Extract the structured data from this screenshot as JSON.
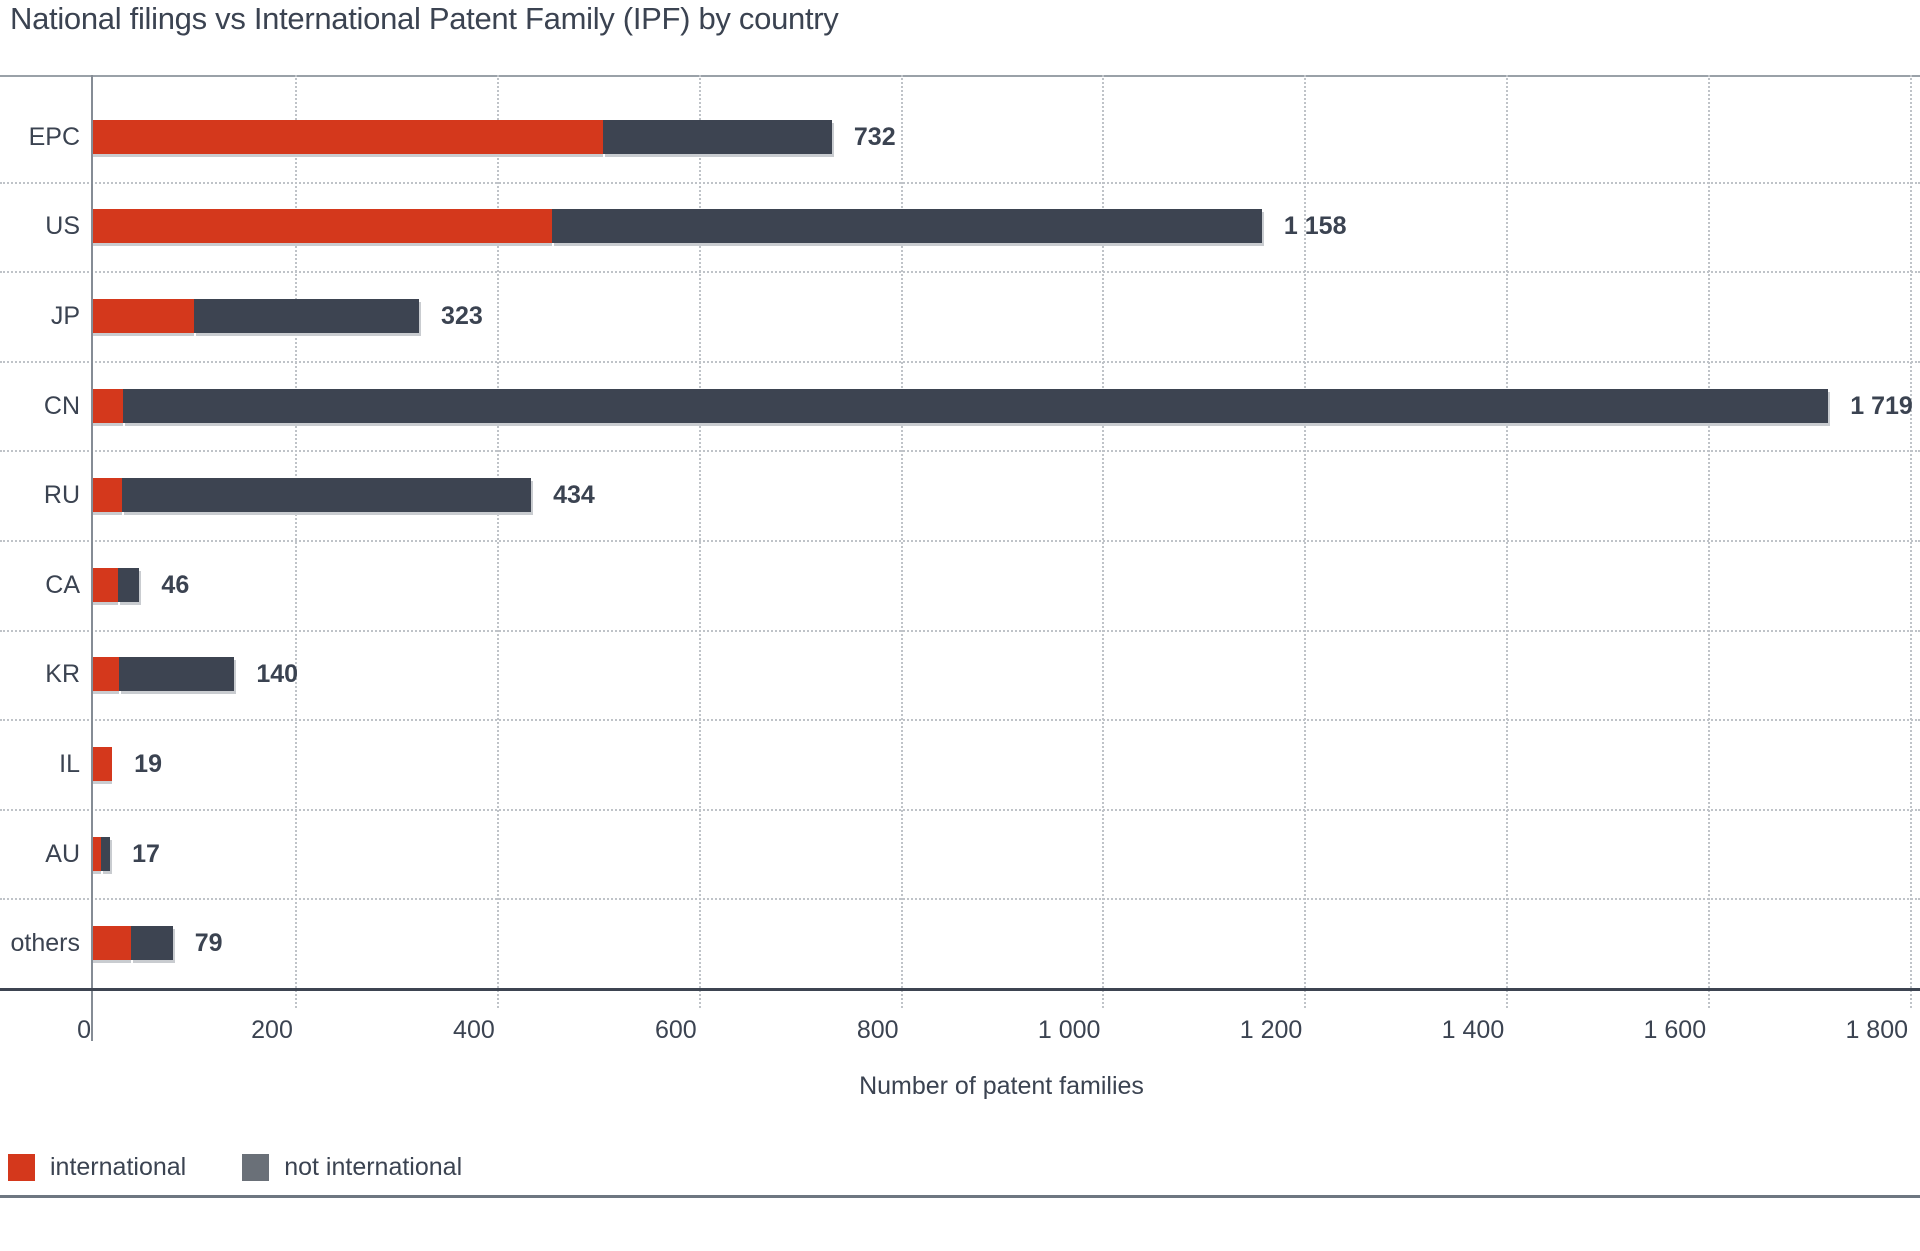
{
  "title": "National filings vs International Patent Family (IPF) by country",
  "chart_data": {
    "type": "bar",
    "orientation": "horizontal",
    "stacked": true,
    "title": "National filings vs International Patent Family (IPF) by country",
    "categories": [
      "EPC",
      "US",
      "JP",
      "CN",
      "RU",
      "CA",
      "KR",
      "IL",
      "AU",
      "others"
    ],
    "series": [
      {
        "name": "international",
        "color": "#d4381c",
        "values": [
          505,
          455,
          100,
          30,
          29,
          25,
          26,
          19,
          8,
          38
        ]
      },
      {
        "name": "not international",
        "color": "#3d4451",
        "values": [
          227,
          703,
          223,
          1689,
          405,
          21,
          114,
          0,
          9,
          41
        ]
      }
    ],
    "totals": [
      732,
      1158,
      323,
      1719,
      434,
      46,
      140,
      19,
      17,
      79
    ],
    "total_labels": [
      "732",
      "1 158",
      "323",
      "1 719",
      "434",
      "46",
      "140",
      "19",
      "17",
      "79"
    ],
    "xlabel": "Number of patent families",
    "ylabel": "",
    "xlim": [
      0,
      1800
    ],
    "x_tick_values": [
      0,
      200,
      400,
      600,
      800,
      1000,
      1200,
      1400,
      1600,
      1800
    ],
    "x_tick_labels": [
      "0",
      "200",
      "400",
      "600",
      "800",
      "1 000",
      "1 200",
      "1 400",
      "1 600",
      "1 800"
    ],
    "grid": "dotted",
    "legend_position": "bottom-left"
  },
  "legend": {
    "items": [
      {
        "label": "international",
        "color": "#d4381c"
      },
      {
        "label": "not international",
        "color": "#6a7078"
      }
    ]
  },
  "colors": {
    "text": "#3b4351",
    "axis_line": "#3d4451",
    "frame_line": "#9aa1a8",
    "gridline": "#bfc3c8",
    "bar_international": "#d4381c",
    "bar_not_international": "#3d4451"
  }
}
